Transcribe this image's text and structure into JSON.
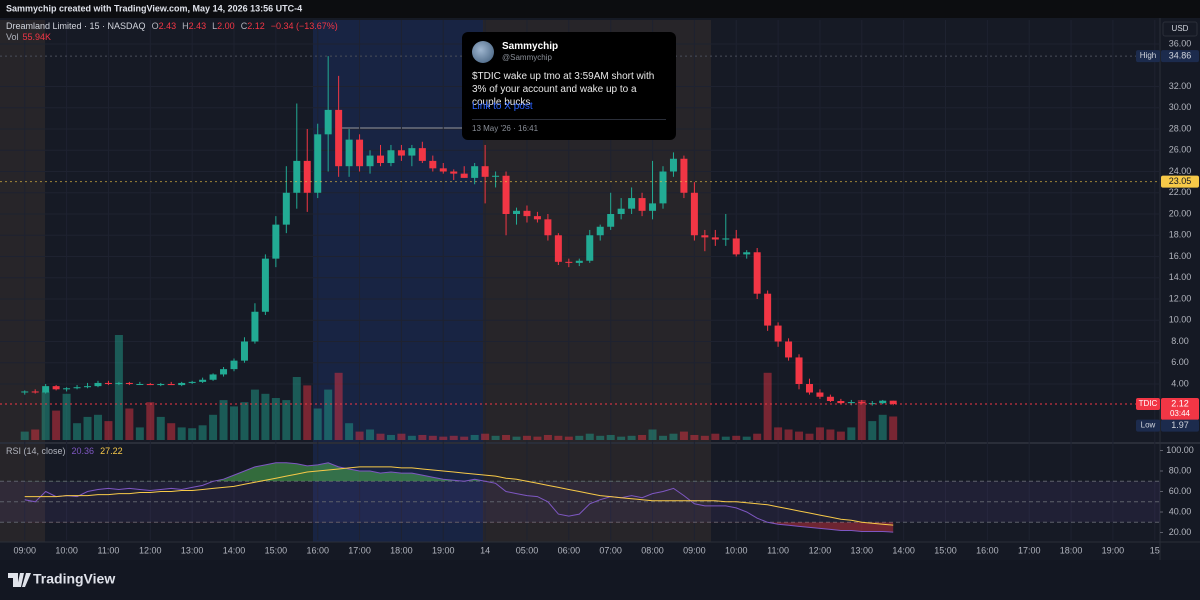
{
  "header": {
    "author": "Sammychip created with TradingView.com, May 14, 2026 13:56 UTC-4",
    "brand": "TradingView"
  },
  "tweet": {
    "name": "Sammychip",
    "handle": "@Sammychip",
    "text": "$TDIC wake up tmo at 3:59AM short with 3% of your account and wake up to a couple bucks",
    "link": "Link to X post",
    "date": "13 May '26 · 16:41"
  },
  "chart_data": {
    "type": "candlestick",
    "title": "Dreamland Limited · 15 · NASDAQ",
    "legend_keys": [
      "O",
      "H",
      "L",
      "C"
    ],
    "legend_values": [
      2.43,
      2.43,
      {
        "value": 2,
        "label": "2.00"
      },
      2.12
    ],
    "change_label": "−0.34 (−13.67%)",
    "volume_title": "Vol",
    "volume_legend_label": "55.94K",
    "currency": "USD",
    "up_color": "#22ab94",
    "down_color": "#f23645",
    "grid": true,
    "candles": [
      [
        3.2,
        3.4,
        3.0,
        3.3
      ],
      [
        3.3,
        3.5,
        3.1,
        3.2
      ],
      [
        3.2,
        4.0,
        3.1,
        3.8
      ],
      [
        3.8,
        3.9,
        3.4,
        3.5
      ],
      [
        3.5,
        3.7,
        3.3,
        3.6
      ],
      [
        3.6,
        3.9,
        3.5,
        3.7
      ],
      [
        3.7,
        4.1,
        3.6,
        3.8
      ],
      [
        3.8,
        4.3,
        3.7,
        4.1
      ],
      [
        4.1,
        4.3,
        3.9,
        4.0
      ],
      [
        4.0,
        4.2,
        3.9,
        4.1
      ],
      [
        4.1,
        4.2,
        3.9,
        4.0
      ],
      [
        4.0,
        4.2,
        3.9,
        4.0
      ],
      [
        4.0,
        4.1,
        3.9,
        3.9
      ],
      [
        3.9,
        4.1,
        3.8,
        4.0
      ],
      [
        4.0,
        4.2,
        3.9,
        3.9
      ],
      [
        3.9,
        4.2,
        3.8,
        4.1
      ],
      [
        4.1,
        4.3,
        4.0,
        4.2
      ],
      [
        4.2,
        4.6,
        4.1,
        4.4
      ],
      [
        4.4,
        5.0,
        4.3,
        4.9
      ],
      [
        4.9,
        5.6,
        4.7,
        5.4
      ],
      [
        5.4,
        6.4,
        5.2,
        6.2
      ],
      [
        6.2,
        8.4,
        6.0,
        8.0
      ],
      [
        8.0,
        11.6,
        7.8,
        10.8
      ],
      [
        10.8,
        16.2,
        10.5,
        15.8
      ],
      [
        15.8,
        19.8,
        15.0,
        19.0
      ],
      [
        19.0,
        24.5,
        18.2,
        22.0
      ],
      [
        22.0,
        30.4,
        20.5,
        25.0
      ],
      [
        25.0,
        28.0,
        20.2,
        22.0
      ],
      [
        22.0,
        28.5,
        21.5,
        27.5
      ],
      [
        27.5,
        34.86,
        24.0,
        29.8
      ],
      [
        29.8,
        33.0,
        23.5,
        24.5
      ],
      [
        24.5,
        28.0,
        23.5,
        27.0
      ],
      [
        27.0,
        27.5,
        24.0,
        24.5
      ],
      [
        24.5,
        26.0,
        23.8,
        25.5
      ],
      [
        25.5,
        26.5,
        24.5,
        24.8
      ],
      [
        24.8,
        26.5,
        24.5,
        26.0
      ],
      [
        26.0,
        26.5,
        25.0,
        25.5
      ],
      [
        25.5,
        26.5,
        24.5,
        26.2
      ],
      [
        26.2,
        26.8,
        24.8,
        25.0
      ],
      [
        25.0,
        25.5,
        24.0,
        24.3
      ],
      [
        24.3,
        24.8,
        23.8,
        24.0
      ],
      [
        24.0,
        24.2,
        23.2,
        23.8
      ],
      [
        23.8,
        24.5,
        23.4,
        23.4
      ],
      [
        23.4,
        24.8,
        22.8,
        24.5
      ],
      [
        24.5,
        26.5,
        21.0,
        23.5
      ],
      [
        23.5,
        24.0,
        22.5,
        23.6
      ],
      [
        23.6,
        24.0,
        18.0,
        20.0
      ],
      [
        20.0,
        20.6,
        19.0,
        20.3
      ],
      [
        20.3,
        20.8,
        19.2,
        19.8
      ],
      [
        19.8,
        20.2,
        19.2,
        19.5
      ],
      [
        19.5,
        20.0,
        17.5,
        18.0
      ],
      [
        18.0,
        18.2,
        15.2,
        15.5
      ],
      [
        15.5,
        15.8,
        15.0,
        15.4
      ],
      [
        15.4,
        15.8,
        15.1,
        15.6
      ],
      [
        15.6,
        18.5,
        15.4,
        18.0
      ],
      [
        18.0,
        19.0,
        17.5,
        18.8
      ],
      [
        18.8,
        22.0,
        18.5,
        20.0
      ],
      [
        20.0,
        21.5,
        19.5,
        20.5
      ],
      [
        20.5,
        22.5,
        20.0,
        21.5
      ],
      [
        21.5,
        22.0,
        19.8,
        20.3
      ],
      [
        20.3,
        25.0,
        19.5,
        21.0
      ],
      [
        21.0,
        24.5,
        20.5,
        24.0
      ],
      [
        24.0,
        25.8,
        23.5,
        25.2
      ],
      [
        25.2,
        25.5,
        21.5,
        22.0
      ],
      [
        22.0,
        23.0,
        17.5,
        18.0
      ],
      [
        18.0,
        18.5,
        16.5,
        17.8
      ],
      [
        17.8,
        18.5,
        17.0,
        17.6
      ],
      [
        17.6,
        20.0,
        17.0,
        17.7
      ],
      [
        17.7,
        18.5,
        16.0,
        16.2
      ],
      [
        16.2,
        16.6,
        15.8,
        16.4
      ],
      [
        16.4,
        16.8,
        12.0,
        12.5
      ],
      [
        12.5,
        12.8,
        9.0,
        9.5
      ],
      [
        9.5,
        9.8,
        7.5,
        8.0
      ],
      [
        8.0,
        8.3,
        6.2,
        6.5
      ],
      [
        6.5,
        6.8,
        3.5,
        4.0
      ],
      [
        4.0,
        4.5,
        3.0,
        3.2
      ],
      [
        3.2,
        3.5,
        2.6,
        2.8
      ],
      [
        2.8,
        3.0,
        2.3,
        2.4
      ],
      [
        2.4,
        2.6,
        2.1,
        2.2
      ],
      [
        2.2,
        2.5,
        2.0,
        2.3
      ],
      [
        2.3,
        2.5,
        2.1,
        2.2
      ],
      [
        2.2,
        2.4,
        1.97,
        2.2
      ],
      [
        2.2,
        2.5,
        2.1,
        2.43
      ],
      [
        2.43,
        2.43,
        2.0,
        2.12
      ]
    ],
    "volumes": [
      20,
      25,
      115,
      70,
      110,
      40,
      55,
      60,
      45,
      250,
      75,
      30,
      90,
      55,
      40,
      30,
      28,
      35,
      60,
      95,
      80,
      90,
      120,
      110,
      100,
      95,
      150,
      130,
      75,
      120,
      160,
      40,
      20,
      25,
      15,
      12,
      15,
      10,
      12,
      10,
      8,
      10,
      8,
      12,
      15,
      10,
      12,
      8,
      10,
      8,
      12,
      10,
      8,
      10,
      15,
      10,
      12,
      8,
      10,
      12,
      25,
      10,
      15,
      20,
      12,
      10,
      15,
      8,
      10,
      8,
      15,
      160,
      30,
      25,
      20,
      15,
      30,
      25,
      20,
      30,
      95,
      45,
      60,
      55.94
    ],
    "reference_line": 23.05,
    "marker_labels": {
      "high": "High",
      "low": "Low",
      "symbol": "TDIC",
      "countdown": "03:44"
    },
    "xlim": [
      -1.6,
      108.5
    ],
    "xticks": [
      {
        "value": 0,
        "label": "09:00"
      },
      {
        "value": 4,
        "label": "10:00"
      },
      {
        "value": 8,
        "label": "11:00"
      },
      {
        "value": 12,
        "label": "12:00"
      },
      {
        "value": 16,
        "label": "13:00"
      },
      {
        "value": 20,
        "label": "14:00"
      },
      {
        "value": 24,
        "label": "15:00"
      },
      {
        "value": 28,
        "label": "16:00"
      },
      {
        "value": 32,
        "label": "17:00"
      },
      {
        "value": 36,
        "label": "18:00"
      },
      {
        "value": 40,
        "label": "19:00"
      },
      {
        "value": 44,
        "label": "14"
      },
      {
        "value": 48,
        "label": "05:00"
      },
      {
        "value": 52,
        "label": "06:00"
      },
      {
        "value": 56,
        "label": "07:00"
      },
      {
        "value": 60,
        "label": "08:00"
      },
      {
        "value": 64,
        "label": "09:00"
      },
      {
        "value": 68,
        "label": "10:00"
      },
      {
        "value": 72,
        "label": "11:00"
      },
      {
        "value": 76,
        "label": "12:00"
      },
      {
        "value": 80,
        "label": "13:00"
      },
      {
        "value": 84,
        "label": "14:00"
      },
      {
        "value": 88,
        "label": "15:00"
      },
      {
        "value": 92,
        "label": "16:00"
      },
      {
        "value": 96,
        "label": "17:00"
      },
      {
        "value": 100,
        "label": "18:00"
      },
      {
        "value": 104,
        "label": "19:00"
      },
      {
        "value": 108,
        "label": "15"
      }
    ],
    "ylim": [
      -1.27,
      38.26
    ],
    "yticks": [
      {
        "value": 4,
        "label": "4.00"
      },
      {
        "value": 6,
        "label": "6.00"
      },
      {
        "value": 8,
        "label": "8.00"
      },
      {
        "value": 10,
        "label": "10.00"
      },
      {
        "value": 12,
        "label": "12.00"
      },
      {
        "value": 14,
        "label": "14.00"
      },
      {
        "value": 16,
        "label": "16.00"
      },
      {
        "value": 18,
        "label": "18.00"
      },
      {
        "value": 20,
        "label": "20.00"
      },
      {
        "value": 22,
        "label": "22.00"
      },
      {
        "value": 24,
        "label": "24.00"
      },
      {
        "value": 26,
        "label": "26.00"
      },
      {
        "value": 28,
        "label": "28.00"
      },
      {
        "value": 30,
        "label": "30.00"
      },
      {
        "value": 32,
        "label": "32.00"
      },
      {
        "value": 36,
        "label": "36.00"
      }
    ],
    "rsi": {
      "title": "RSI (14, close)",
      "color": "#7e57c2",
      "ma_color": "#f7c948",
      "bands": [
        70,
        50,
        30
      ],
      "ylim": [
        12.7,
        104.4
      ],
      "yticks": [
        {
          "value": 20,
          "label": "20.00"
        },
        {
          "value": 40,
          "label": "40.00"
        },
        {
          "value": 60,
          "label": "60.00"
        },
        {
          "value": 80,
          "label": "80.00"
        },
        {
          "value": 100,
          "label": "100.00"
        }
      ],
      "values": [
        52,
        50,
        60,
        55,
        56,
        55,
        60,
        62,
        63,
        62,
        63,
        62,
        61,
        62,
        63,
        62,
        64,
        66,
        70,
        72,
        76,
        80,
        84,
        86,
        88,
        88,
        87,
        85,
        86,
        88,
        84,
        82,
        80,
        80,
        78,
        79,
        78,
        78,
        76,
        74,
        72,
        71,
        70,
        72,
        70,
        68,
        60,
        58,
        56,
        55,
        50,
        38,
        36,
        38,
        48,
        52,
        55,
        54,
        56,
        54,
        58,
        60,
        63,
        56,
        48,
        46,
        46,
        46,
        44,
        40,
        34,
        30,
        28,
        27,
        26,
        25,
        24,
        23,
        22,
        22,
        21,
        21,
        21,
        20.36
      ],
      "ma_values": [
        55,
        55,
        55,
        55,
        56,
        56,
        56,
        57,
        57,
        58,
        58,
        59,
        59,
        60,
        60,
        61,
        61,
        62,
        63,
        64,
        65,
        67,
        69,
        71,
        73,
        75,
        77,
        79,
        80,
        81,
        82,
        83,
        84,
        84,
        84,
        84,
        83,
        83,
        82,
        81,
        80,
        79,
        78,
        77,
        76,
        75,
        73,
        72,
        70,
        68,
        66,
        64,
        62,
        60,
        58,
        56,
        55,
        54,
        53,
        52,
        51,
        51,
        51,
        51,
        51,
        51,
        51,
        50,
        50,
        49,
        48,
        47,
        45,
        43,
        41,
        39,
        37,
        35,
        33,
        32,
        30,
        29,
        28,
        27.22
      ]
    }
  }
}
